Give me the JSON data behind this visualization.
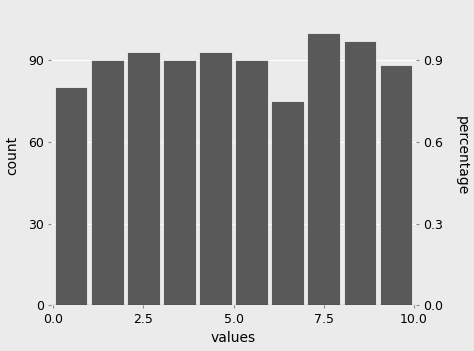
{
  "bar_centers": [
    0.5,
    1.5,
    2.5,
    3.5,
    4.5,
    5.5,
    6.5,
    7.5,
    8.5,
    9.5
  ],
  "bar_heights": [
    80,
    90,
    93,
    90,
    93,
    90,
    75,
    100,
    97,
    88
  ],
  "bar_color": "#595959",
  "bar_edge_color": "white",
  "bar_linewidth": 0.5,
  "bar_width": 0.9,
  "bg_color": "#EBEBEB",
  "panel_bg": "#EBEBEB",
  "grid_color": "#FFFFFF",
  "xlabel": "values",
  "ylabel_left": "count",
  "ylabel_right": "percentage",
  "xlim": [
    -0.05,
    10.05
  ],
  "ylim": [
    0,
    110
  ],
  "xticks": [
    0.0,
    2.5,
    5.0,
    7.5,
    10.0
  ],
  "yticks_left": [
    0,
    30,
    60,
    90
  ],
  "yticks_right": [
    0.0,
    0.3,
    0.6,
    0.9
  ],
  "count_to_pct_ratio": 100,
  "title": ""
}
